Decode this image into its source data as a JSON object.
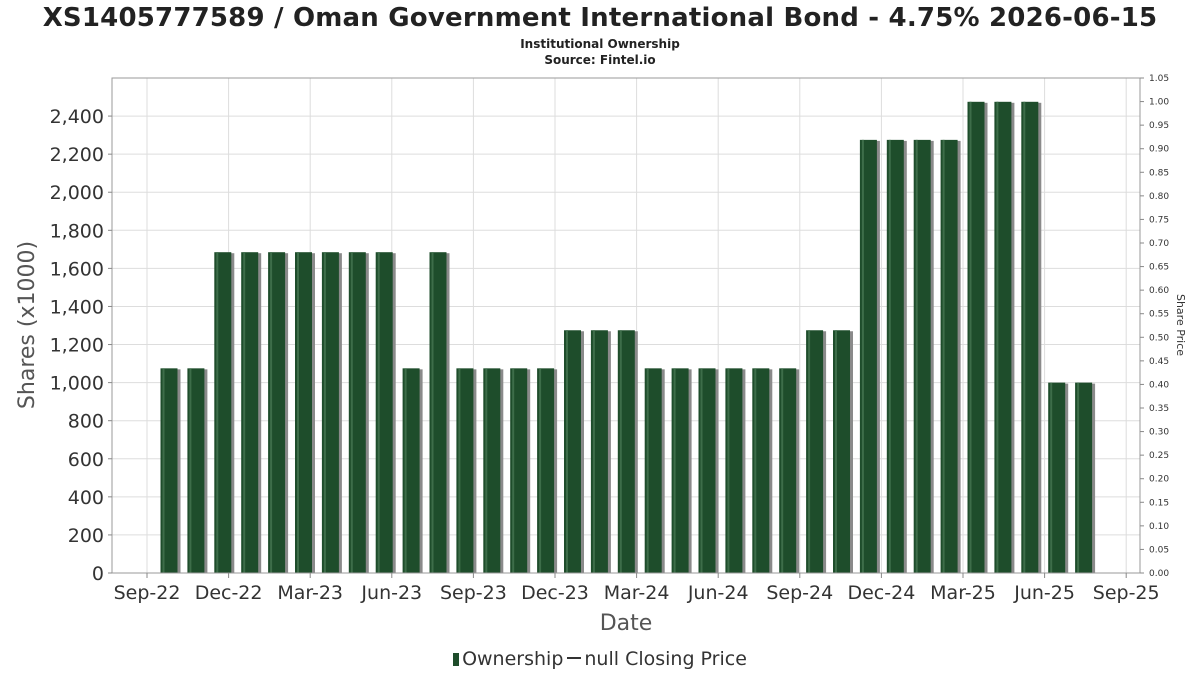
{
  "title": "XS1405777589 / Oman Government International Bond - 4.75% 2026-06-15",
  "subtitle_lines": [
    "Institutional Ownership",
    "Source: Fintel.io"
  ],
  "legend": {
    "bar_label": "Ownership",
    "line_label": "null Closing Price"
  },
  "colors": {
    "bar": "#1e4d2b",
    "bar_shadow": "#8a8a8a",
    "grid": "#dddddd"
  },
  "chart_data": {
    "type": "bar",
    "xlabel": "Date",
    "ylabel": "Shares (x1000)",
    "y2label": "Share Price",
    "ylim": [
      0,
      2600
    ],
    "y_ticks": [
      0,
      200,
      400,
      600,
      800,
      1000,
      1200,
      1400,
      1600,
      1800,
      2000,
      2200,
      2400
    ],
    "y_tick_labels": [
      "0",
      "200",
      "400",
      "600",
      "800",
      "1,000",
      "1,200",
      "1,400",
      "1,600",
      "1,800",
      "2,000",
      "2,200",
      "2,400"
    ],
    "y2lim": [
      0,
      1.05
    ],
    "y2_tick_labels": [
      "0.00",
      "0.05",
      "0.10",
      "0.15",
      "0.20",
      "0.25",
      "0.30",
      "0.35",
      "0.40",
      "0.45",
      "0.50",
      "0.55",
      "0.60",
      "0.65",
      "0.70",
      "0.75",
      "0.80",
      "0.85",
      "0.90",
      "0.95",
      "1.00",
      "1.05"
    ],
    "x_tick_labels": [
      "Sep-22",
      "Dec-22",
      "Mar-23",
      "Jun-23",
      "Sep-23",
      "Dec-23",
      "Mar-24",
      "Jun-24",
      "Sep-24",
      "Dec-24",
      "Mar-25",
      "Jun-25",
      "Sep-25"
    ],
    "grid": true,
    "legend_position": "bottom",
    "series": [
      {
        "name": "Ownership",
        "values": [
          1075,
          1075,
          1685,
          1685,
          1685,
          1685,
          1685,
          1685,
          1685,
          1075,
          1685,
          1075,
          1075,
          1075,
          1075,
          1275,
          1275,
          1275,
          1075,
          1075,
          1075,
          1075,
          1075,
          1075,
          1275,
          1275,
          2275,
          2275,
          2275,
          2275,
          2475,
          2475,
          2475,
          1000,
          1000
        ]
      }
    ]
  }
}
